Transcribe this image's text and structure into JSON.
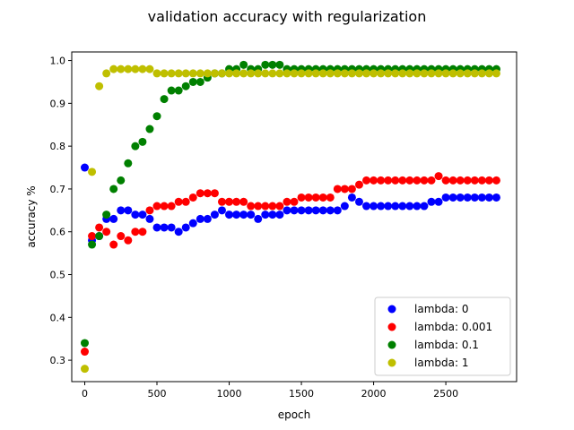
{
  "chart_data": {
    "type": "scatter",
    "title": "validation accuracy with regularization",
    "xlabel": "epoch",
    "ylabel": "accuracy %",
    "xlim": [
      -90,
      2990
    ],
    "ylim": [
      0.25,
      1.02
    ],
    "xticks": [
      0,
      500,
      1000,
      1500,
      2000,
      2500
    ],
    "yticks": [
      0.3,
      0.4,
      0.5,
      0.6,
      0.7,
      0.8,
      0.9,
      1.0
    ],
    "xtick_labels": [
      "0",
      "500",
      "1000",
      "1500",
      "2000",
      "2500"
    ],
    "ytick_labels": [
      "0.3",
      "0.4",
      "0.5",
      "0.6",
      "0.7",
      "0.8",
      "0.9",
      "1.0"
    ],
    "grid": false,
    "legend_position": "lower-right",
    "x": [
      0,
      50,
      100,
      150,
      200,
      250,
      300,
      350,
      400,
      450,
      500,
      550,
      600,
      650,
      700,
      750,
      800,
      850,
      900,
      950,
      1000,
      1050,
      1100,
      1150,
      1200,
      1250,
      1300,
      1350,
      1400,
      1450,
      1500,
      1550,
      1600,
      1650,
      1700,
      1750,
      1800,
      1850,
      1900,
      1950,
      2000,
      2050,
      2100,
      2150,
      2200,
      2250,
      2300,
      2350,
      2400,
      2450,
      2500,
      2550,
      2600,
      2650,
      2700,
      2750,
      2800,
      2850
    ],
    "series": [
      {
        "name": "lambda: 0",
        "color": "#0000ff",
        "values": [
          0.75,
          0.58,
          0.59,
          0.63,
          0.63,
          0.65,
          0.65,
          0.64,
          0.64,
          0.63,
          0.61,
          0.61,
          0.61,
          0.6,
          0.61,
          0.62,
          0.63,
          0.63,
          0.64,
          0.65,
          0.64,
          0.64,
          0.64,
          0.64,
          0.63,
          0.64,
          0.64,
          0.64,
          0.65,
          0.65,
          0.65,
          0.65,
          0.65,
          0.65,
          0.65,
          0.65,
          0.66,
          0.68,
          0.67,
          0.66,
          0.66,
          0.66,
          0.66,
          0.66,
          0.66,
          0.66,
          0.66,
          0.66,
          0.67,
          0.67,
          0.68,
          0.68,
          0.68,
          0.68,
          0.68,
          0.68,
          0.68,
          0.68
        ]
      },
      {
        "name": "lambda: 0.001",
        "color": "#ff0000",
        "values": [
          0.32,
          0.59,
          0.61,
          0.6,
          0.57,
          0.59,
          0.58,
          0.6,
          0.6,
          0.65,
          0.66,
          0.66,
          0.66,
          0.67,
          0.67,
          0.68,
          0.69,
          0.69,
          0.69,
          0.67,
          0.67,
          0.67,
          0.67,
          0.66,
          0.66,
          0.66,
          0.66,
          0.66,
          0.67,
          0.67,
          0.68,
          0.68,
          0.68,
          0.68,
          0.68,
          0.7,
          0.7,
          0.7,
          0.71,
          0.72,
          0.72,
          0.72,
          0.72,
          0.72,
          0.72,
          0.72,
          0.72,
          0.72,
          0.72,
          0.73,
          0.72,
          0.72,
          0.72,
          0.72,
          0.72,
          0.72,
          0.72,
          0.72
        ]
      },
      {
        "name": "lambda: 0.1",
        "color": "#008000",
        "values": [
          0.34,
          0.57,
          0.59,
          0.64,
          0.7,
          0.72,
          0.76,
          0.8,
          0.81,
          0.84,
          0.87,
          0.91,
          0.93,
          0.93,
          0.94,
          0.95,
          0.95,
          0.96,
          0.97,
          0.97,
          0.98,
          0.98,
          0.99,
          0.98,
          0.98,
          0.99,
          0.99,
          0.99,
          0.98,
          0.98,
          0.98,
          0.98,
          0.98,
          0.98,
          0.98,
          0.98,
          0.98,
          0.98,
          0.98,
          0.98,
          0.98,
          0.98,
          0.98,
          0.98,
          0.98,
          0.98,
          0.98,
          0.98,
          0.98,
          0.98,
          0.98,
          0.98,
          0.98,
          0.98,
          0.98,
          0.98,
          0.98,
          0.98
        ]
      },
      {
        "name": "lambda: 1",
        "color": "#bfbf00",
        "values": [
          0.28,
          0.74,
          0.94,
          0.97,
          0.98,
          0.98,
          0.98,
          0.98,
          0.98,
          0.98,
          0.97,
          0.97,
          0.97,
          0.97,
          0.97,
          0.97,
          0.97,
          0.97,
          0.97,
          0.97,
          0.97,
          0.97,
          0.97,
          0.97,
          0.97,
          0.97,
          0.97,
          0.97,
          0.97,
          0.97,
          0.97,
          0.97,
          0.97,
          0.97,
          0.97,
          0.97,
          0.97,
          0.97,
          0.97,
          0.97,
          0.97,
          0.97,
          0.97,
          0.97,
          0.97,
          0.97,
          0.97,
          0.97,
          0.97,
          0.97,
          0.97,
          0.97,
          0.97,
          0.97,
          0.97,
          0.97,
          0.97,
          0.97
        ]
      }
    ]
  }
}
